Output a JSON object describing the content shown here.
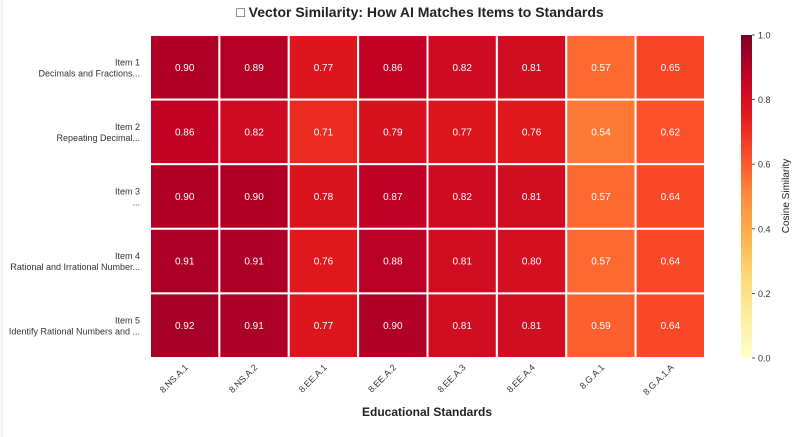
{
  "chart_data": {
    "type": "heatmap",
    "title": "□ Vector Similarity: How AI Matches Items to Standards",
    "xlabel": "Educational Standards",
    "ylabel": "",
    "colorbar_label": "Cosine Similarity",
    "colormap": "YlOrRd",
    "vmin": 0.0,
    "vmax": 1.0,
    "colorbar_ticks": [
      "0.0",
      "0.2",
      "0.4",
      "0.6",
      "0.8",
      "1.0"
    ],
    "x_categories": [
      "8.NS.A.1",
      "8.NS.A.2",
      "8.EE.A.1",
      "8.EE.A.2",
      "8.EE.A.3",
      "8.EE.A.4",
      "8.G.A.1",
      "8.G.A.1.A"
    ],
    "y_categories": [
      {
        "line1": "Item 1",
        "line2": "Decimals and Fractions..."
      },
      {
        "line1": "Item 2",
        "line2": "Repeating Decimal..."
      },
      {
        "line1": "Item 3",
        "line2": "..."
      },
      {
        "line1": "Item 4",
        "line2": "Rational and Irrational Number..."
      },
      {
        "line1": "Item 5",
        "line2": "Identify Rational Numbers and ..."
      }
    ],
    "values": [
      [
        0.9,
        0.89,
        0.77,
        0.86,
        0.82,
        0.81,
        0.57,
        0.65
      ],
      [
        0.86,
        0.82,
        0.71,
        0.79,
        0.77,
        0.76,
        0.54,
        0.62
      ],
      [
        0.9,
        0.9,
        0.78,
        0.87,
        0.82,
        0.81,
        0.57,
        0.64
      ],
      [
        0.91,
        0.91,
        0.76,
        0.88,
        0.81,
        0.8,
        0.57,
        0.64
      ],
      [
        0.92,
        0.91,
        0.77,
        0.9,
        0.81,
        0.81,
        0.59,
        0.64
      ]
    ],
    "annotated": true,
    "cell_border_color": "#ffffff"
  }
}
